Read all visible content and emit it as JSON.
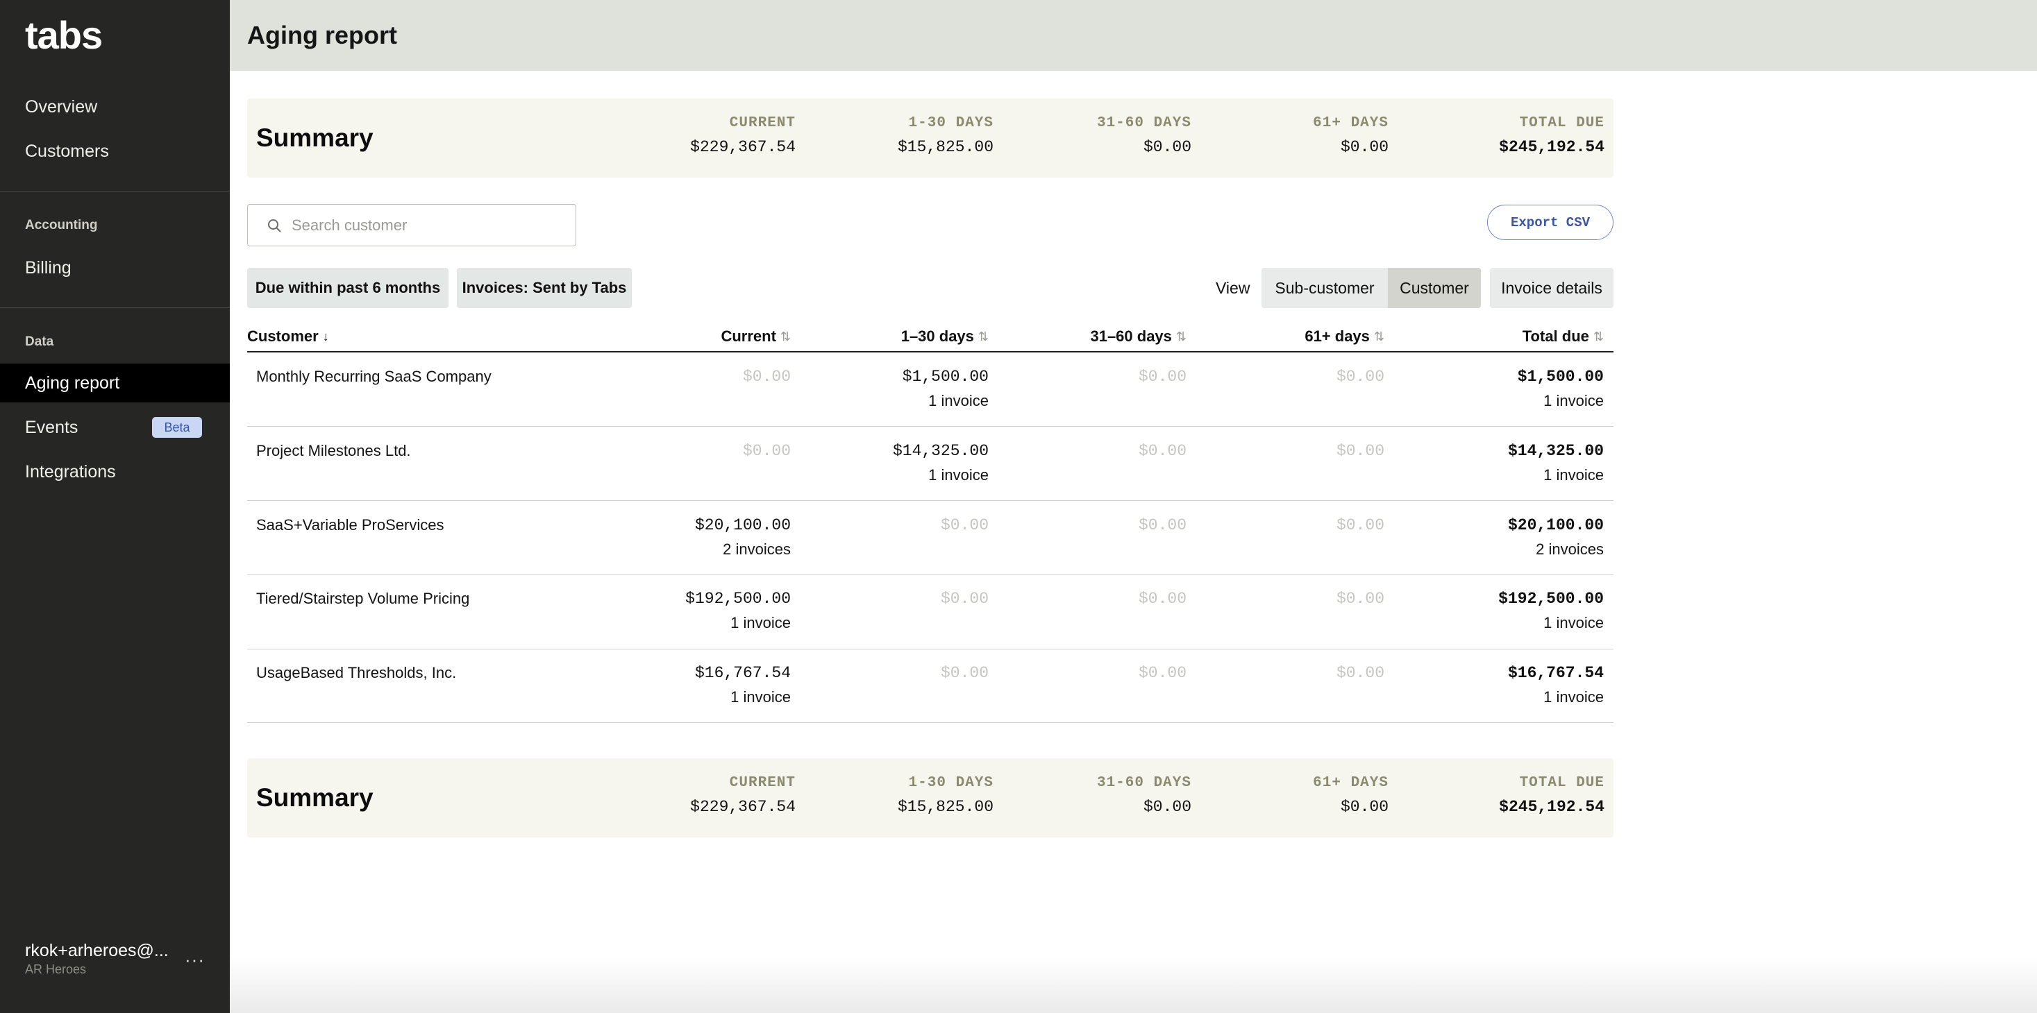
{
  "sidebar": {
    "logo": "tabs",
    "nav_overview": "Overview",
    "nav_customers": "Customers",
    "section_accounting": "Accounting",
    "nav_billing": "Billing",
    "section_data": "Data",
    "nav_aging_report": "Aging report",
    "nav_events": "Events",
    "events_badge": "Beta",
    "nav_integrations": "Integrations",
    "user_email": "rkok+arheroes@...",
    "user_org": "AR Heroes",
    "more_label": "···"
  },
  "header": {
    "title": "Aging report"
  },
  "summary": {
    "title": "Summary",
    "columns": [
      {
        "label": "CURRENT",
        "value": "$229,367.54"
      },
      {
        "label": "1-30 DAYS",
        "value": "$15,825.00"
      },
      {
        "label": "31-60 DAYS",
        "value": "$0.00"
      },
      {
        "label": "61+ DAYS",
        "value": "$0.00"
      },
      {
        "label": "TOTAL DUE",
        "value": "$245,192.54"
      }
    ]
  },
  "search": {
    "placeholder": "Search customer",
    "value": ""
  },
  "export_label": "Export CSV",
  "filters": {
    "due_within": "Due within past 6 months",
    "invoices": "Invoices: Sent by Tabs"
  },
  "view": {
    "label": "View",
    "options": [
      "Sub-customer",
      "Customer",
      "Invoice details"
    ],
    "selected": "Customer"
  },
  "table": {
    "headers": {
      "customer": "Customer",
      "current": "Current",
      "d1_30": "1–30 days",
      "d31_60": "31–60 days",
      "d61": "61+ days",
      "total": "Total due"
    },
    "sort_icons": {
      "active": "↓",
      "inactive": "⇅"
    },
    "rows": [
      {
        "customer": "Monthly Recurring SaaS Company",
        "current": "$0.00",
        "current_sub": "",
        "d1_30": "$1,500.00",
        "d1_30_sub": "1 invoice",
        "d31_60": "$0.00",
        "d61": "$0.00",
        "total": "$1,500.00",
        "total_sub": "1 invoice"
      },
      {
        "customer": "Project Milestones Ltd.",
        "current": "$0.00",
        "current_sub": "",
        "d1_30": "$14,325.00",
        "d1_30_sub": "1 invoice",
        "d31_60": "$0.00",
        "d61": "$0.00",
        "total": "$14,325.00",
        "total_sub": "1 invoice"
      },
      {
        "customer": "SaaS+Variable ProServices",
        "current": "$20,100.00",
        "current_sub": "2 invoices",
        "d1_30": "$0.00",
        "d1_30_sub": "",
        "d31_60": "$0.00",
        "d61": "$0.00",
        "total": "$20,100.00",
        "total_sub": "2 invoices"
      },
      {
        "customer": "Tiered/Stairstep Volume Pricing",
        "current": "$192,500.00",
        "current_sub": "1 invoice",
        "d1_30": "$0.00",
        "d1_30_sub": "",
        "d31_60": "$0.00",
        "d61": "$0.00",
        "total": "$192,500.00",
        "total_sub": "1 invoice"
      },
      {
        "customer": "UsageBased Thresholds, Inc.",
        "current": "$16,767.54",
        "current_sub": "1 invoice",
        "d1_30": "$0.00",
        "d1_30_sub": "",
        "d31_60": "$0.00",
        "d61": "$0.00",
        "total": "$16,767.54",
        "total_sub": "1 invoice"
      }
    ]
  },
  "colors": {
    "sidebar_bg": "#262624",
    "header_bg": "#dfe1db",
    "summary_bg": "#f6f6ef",
    "accent_blue": "#3a55a5",
    "zero_value": "#c6c6c0"
  }
}
